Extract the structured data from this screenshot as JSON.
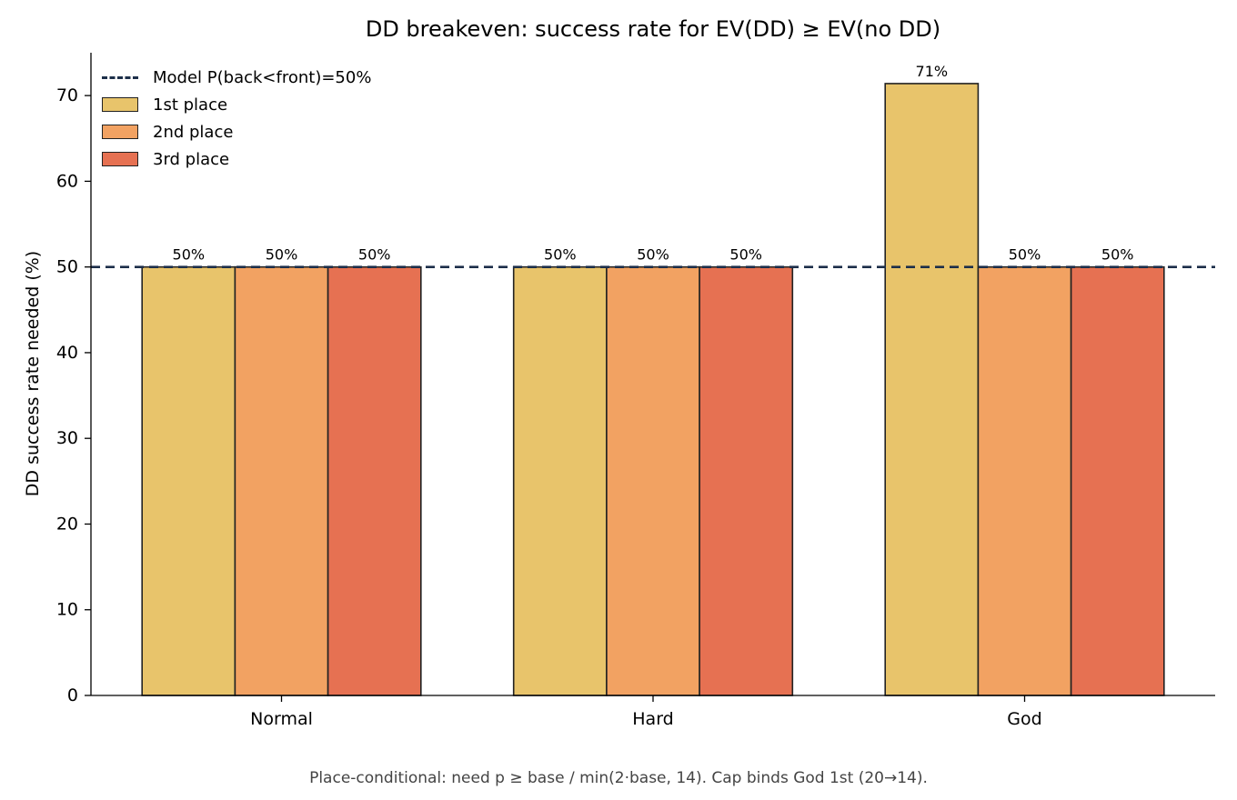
{
  "chart_data": {
    "type": "bar",
    "title": "DD breakeven: success rate for EV(DD) ≥ EV(no DD)",
    "xlabel": "",
    "ylabel": "DD success rate needed (%)",
    "ylim": [
      0,
      75
    ],
    "yticks": [
      0,
      10,
      20,
      30,
      40,
      50,
      60,
      70
    ],
    "categories": [
      "Normal",
      "Hard",
      "God"
    ],
    "series": [
      {
        "name": "1st place",
        "color": "#e8c46b",
        "values": [
          50,
          50,
          71.4
        ],
        "labels": [
          "50%",
          "50%",
          "71%"
        ]
      },
      {
        "name": "2nd place",
        "color": "#f2a262",
        "values": [
          50,
          50,
          50
        ],
        "labels": [
          "50%",
          "50%",
          "50%"
        ]
      },
      {
        "name": "3rd place",
        "color": "#e67152",
        "values": [
          50,
          50,
          50
        ],
        "labels": [
          "50%",
          "50%",
          "50%"
        ]
      }
    ],
    "reference_line": {
      "label": "Model P(back<front)=50%",
      "value": 50,
      "color": "#1d2f4a",
      "style": "dashed"
    },
    "legend_position": "top-left",
    "grid": false,
    "caption": "Place-conditional: need p ≥ base / min(2·base, 14). Cap binds God 1st (20→14)."
  }
}
